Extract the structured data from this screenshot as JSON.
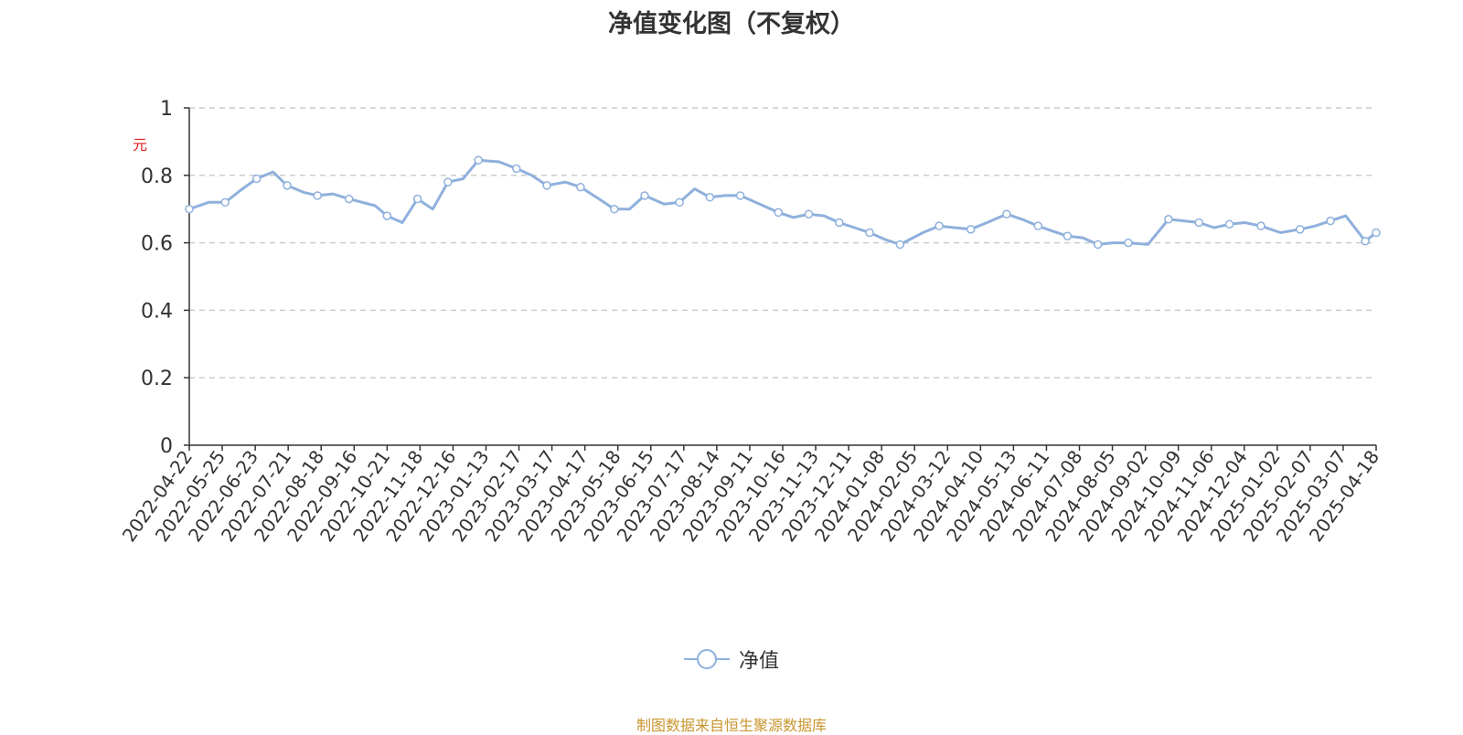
{
  "chart_data": {
    "type": "line",
    "title": "净值变化图（不复权）",
    "ylabel": "元",
    "ylim": [
      0,
      1
    ],
    "yticks": [
      0,
      0.2,
      0.4,
      0.6,
      0.8,
      1
    ],
    "ytick_labels": [
      "0",
      "0.2",
      "0.4",
      "0.6",
      "0.8",
      "1"
    ],
    "xtick_labels": [
      "2022-04-22",
      "2022-05-25",
      "2022-06-23",
      "2022-07-21",
      "2022-08-18",
      "2022-09-16",
      "2022-10-21",
      "2022-11-18",
      "2022-12-16",
      "2023-01-13",
      "2023-02-17",
      "2023-03-17",
      "2023-04-17",
      "2023-05-18",
      "2023-06-15",
      "2023-07-17",
      "2023-08-14",
      "2023-09-11",
      "2023-10-16",
      "2023-11-13",
      "2023-12-11",
      "2024-01-08",
      "2024-02-05",
      "2024-03-12",
      "2024-04-10",
      "2024-05-13",
      "2024-06-11",
      "2024-07-08",
      "2024-08-05",
      "2024-09-02",
      "2024-10-09",
      "2024-11-06",
      "2024-12-04",
      "2025-01-02",
      "2025-02-07",
      "2025-03-07",
      "2025-04-18"
    ],
    "grid": true,
    "legend_position": "bottom-center",
    "series": [
      {
        "name": "净值",
        "color": "#8fb0dc",
        "x": [
          "2022-04-22",
          "2022-05-10",
          "2022-05-25",
          "2022-06-10",
          "2022-06-23",
          "2022-07-08",
          "2022-07-21",
          "2022-08-05",
          "2022-08-18",
          "2022-09-01",
          "2022-09-16",
          "2022-10-10",
          "2022-10-21",
          "2022-11-04",
          "2022-11-18",
          "2022-12-02",
          "2022-12-16",
          "2022-12-30",
          "2023-01-13",
          "2023-02-01",
          "2023-02-17",
          "2023-03-03",
          "2023-03-17",
          "2023-04-03",
          "2023-04-17",
          "2023-05-04",
          "2023-05-18",
          "2023-06-01",
          "2023-06-15",
          "2023-07-03",
          "2023-07-17",
          "2023-07-31",
          "2023-08-14",
          "2023-08-28",
          "2023-09-11",
          "2023-09-25",
          "2023-10-16",
          "2023-10-30",
          "2023-11-13",
          "2023-11-27",
          "2023-12-11",
          "2023-12-25",
          "2024-01-08",
          "2024-01-22",
          "2024-02-05",
          "2024-02-26",
          "2024-03-12",
          "2024-03-26",
          "2024-04-10",
          "2024-04-25",
          "2024-05-13",
          "2024-05-27",
          "2024-06-11",
          "2024-06-24",
          "2024-07-08",
          "2024-07-22",
          "2024-08-05",
          "2024-08-19",
          "2024-09-02",
          "2024-09-20",
          "2024-10-09",
          "2024-10-23",
          "2024-11-06",
          "2024-11-20",
          "2024-12-04",
          "2024-12-18",
          "2025-01-02",
          "2025-01-20",
          "2025-02-07",
          "2025-02-21",
          "2025-03-07",
          "2025-03-21",
          "2025-04-08",
          "2025-04-18"
        ],
        "values": [
          0.7,
          0.72,
          0.72,
          0.76,
          0.79,
          0.81,
          0.77,
          0.75,
          0.74,
          0.745,
          0.73,
          0.71,
          0.68,
          0.66,
          0.73,
          0.7,
          0.78,
          0.79,
          0.845,
          0.84,
          0.82,
          0.8,
          0.77,
          0.78,
          0.765,
          0.73,
          0.7,
          0.7,
          0.74,
          0.715,
          0.72,
          0.76,
          0.735,
          0.74,
          0.74,
          0.72,
          0.69,
          0.675,
          0.685,
          0.68,
          0.66,
          0.645,
          0.63,
          0.61,
          0.595,
          0.63,
          0.65,
          0.645,
          0.64,
          0.66,
          0.685,
          0.67,
          0.65,
          0.635,
          0.62,
          0.615,
          0.595,
          0.6,
          0.6,
          0.595,
          0.67,
          0.665,
          0.66,
          0.645,
          0.655,
          0.66,
          0.65,
          0.63,
          0.64,
          0.65,
          0.665,
          0.68,
          0.605,
          0.63
        ]
      }
    ]
  },
  "legend": {
    "label": "净值"
  },
  "source_text": "制图数据来自恒生聚源数据库"
}
